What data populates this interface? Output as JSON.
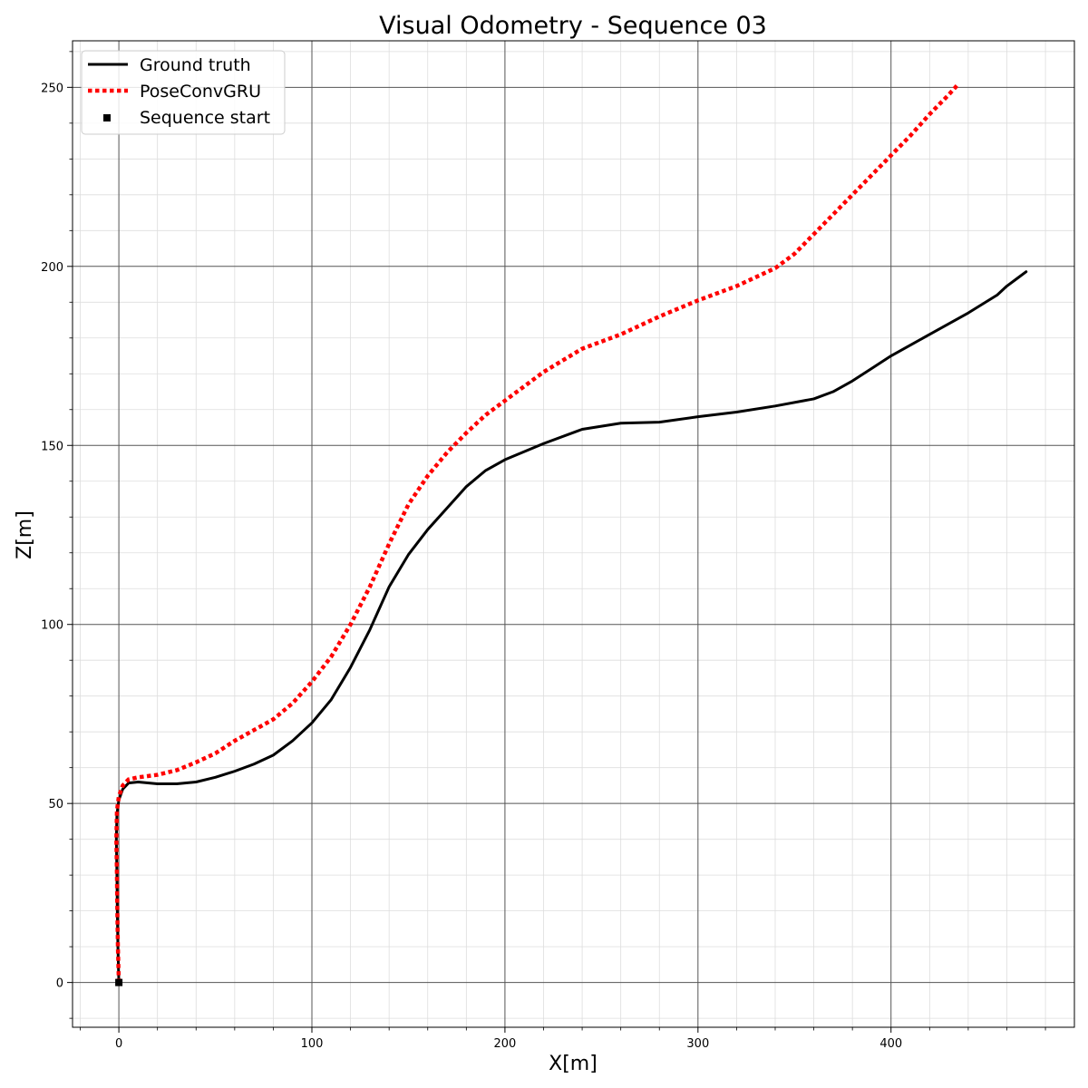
{
  "chart_data": {
    "type": "line",
    "title": "Visual Odometry - Sequence 03",
    "xlabel": "X[m]",
    "ylabel": "Z[m]",
    "xlim": [
      -24,
      495
    ],
    "ylim": [
      -12.5,
      263
    ],
    "x_ticks": [
      0,
      100,
      200,
      300,
      400
    ],
    "y_ticks": [
      0,
      50,
      100,
      150,
      200,
      250
    ],
    "grid": "major and minor",
    "legend_position": "top-left",
    "colors": {
      "ground_truth": "#000000",
      "prediction": "#ff0000",
      "major_grid": "#555555",
      "minor_grid": "#dddddd"
    },
    "series": [
      {
        "name": "Ground truth",
        "style": "solid",
        "points": [
          [
            0,
            0
          ],
          [
            -0.5,
            10
          ],
          [
            -0.8,
            20
          ],
          [
            -1,
            30
          ],
          [
            -1.3,
            40
          ],
          [
            -1,
            47
          ],
          [
            0,
            51
          ],
          [
            2,
            54
          ],
          [
            5,
            55.7
          ],
          [
            10,
            56
          ],
          [
            20,
            55.5
          ],
          [
            30,
            55.5
          ],
          [
            40,
            56
          ],
          [
            50,
            57.3
          ],
          [
            60,
            59
          ],
          [
            70,
            61
          ],
          [
            80,
            63.5
          ],
          [
            90,
            67.5
          ],
          [
            100,
            72.5
          ],
          [
            110,
            79
          ],
          [
            120,
            88
          ],
          [
            130,
            98.5
          ],
          [
            140,
            110.5
          ],
          [
            150,
            119.5
          ],
          [
            160,
            126.5
          ],
          [
            170,
            132.5
          ],
          [
            180,
            138.5
          ],
          [
            190,
            143
          ],
          [
            200,
            146
          ],
          [
            220,
            150.5
          ],
          [
            240,
            154.5
          ],
          [
            260,
            156.2
          ],
          [
            280,
            156.5
          ],
          [
            300,
            158
          ],
          [
            320,
            159.3
          ],
          [
            340,
            161
          ],
          [
            360,
            163
          ],
          [
            370,
            165
          ],
          [
            380,
            168
          ],
          [
            390,
            171.5
          ],
          [
            400,
            175
          ],
          [
            420,
            181
          ],
          [
            440,
            187
          ],
          [
            455,
            192
          ],
          [
            460,
            194.5
          ],
          [
            465,
            196.5
          ],
          [
            470,
            198.5
          ]
        ]
      },
      {
        "name": "PoseConvGRU",
        "style": "dotted",
        "points": [
          [
            0,
            0
          ],
          [
            -0.5,
            10
          ],
          [
            -0.8,
            20
          ],
          [
            -1,
            30
          ],
          [
            -1.3,
            40
          ],
          [
            -1,
            48
          ],
          [
            0,
            52
          ],
          [
            2,
            55
          ],
          [
            5,
            56.7
          ],
          [
            10,
            57.3
          ],
          [
            20,
            58
          ],
          [
            30,
            59.3
          ],
          [
            40,
            61.5
          ],
          [
            50,
            64
          ],
          [
            60,
            67.5
          ],
          [
            70,
            70.5
          ],
          [
            80,
            73.5
          ],
          [
            90,
            78
          ],
          [
            100,
            84
          ],
          [
            110,
            91
          ],
          [
            120,
            100
          ],
          [
            130,
            110.5
          ],
          [
            140,
            122.5
          ],
          [
            150,
            133.5
          ],
          [
            160,
            141.5
          ],
          [
            170,
            148
          ],
          [
            180,
            153.5
          ],
          [
            190,
            158.5
          ],
          [
            200,
            162.5
          ],
          [
            220,
            170.5
          ],
          [
            240,
            177
          ],
          [
            260,
            181
          ],
          [
            280,
            186
          ],
          [
            300,
            190.5
          ],
          [
            320,
            194.5
          ],
          [
            340,
            199.5
          ],
          [
            350,
            203.5
          ],
          [
            360,
            209
          ],
          [
            370,
            214.5
          ],
          [
            380,
            220
          ],
          [
            390,
            225.5
          ],
          [
            400,
            231
          ],
          [
            410,
            236.5
          ],
          [
            420,
            242.5
          ],
          [
            430,
            248
          ],
          [
            435,
            251
          ]
        ]
      },
      {
        "name": "Sequence start",
        "style": "marker",
        "points": [
          [
            0,
            0
          ]
        ]
      }
    ]
  }
}
